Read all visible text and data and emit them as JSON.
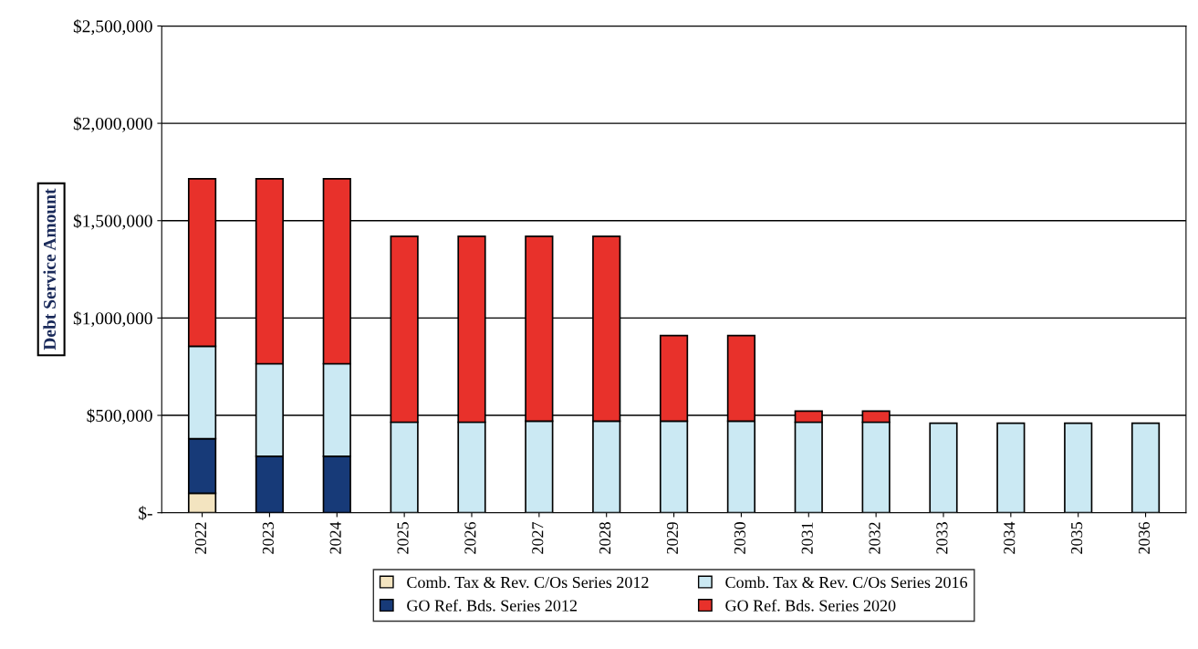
{
  "chart_data": {
    "type": "bar",
    "stacked": true,
    "ylabel": "Debt Service Amount",
    "categories": [
      "2022",
      "2023",
      "2024",
      "2025",
      "2026",
      "2027",
      "2028",
      "2029",
      "2030",
      "2031",
      "2032",
      "2033",
      "2034",
      "2035",
      "2036"
    ],
    "series": [
      {
        "name": "Comb. Tax & Rev. C/Os Series 2012",
        "color": "#f3e4c0",
        "values": [
          100000,
          0,
          0,
          0,
          0,
          0,
          0,
          0,
          0,
          0,
          0,
          0,
          0,
          0,
          0
        ]
      },
      {
        "name": "GO Ref. Bds. Series 2012",
        "color": "#173a78",
        "values": [
          280000,
          290000,
          290000,
          0,
          0,
          0,
          0,
          0,
          0,
          0,
          0,
          0,
          0,
          0,
          0
        ]
      },
      {
        "name": "Comb. Tax & Rev. C/Os Series 2016",
        "color": "#cbe9f3",
        "values": [
          475000,
          475000,
          475000,
          465000,
          465000,
          470000,
          470000,
          470000,
          470000,
          465000,
          465000,
          460000,
          460000,
          460000,
          460000
        ]
      },
      {
        "name": "GO Ref. Bds. Series 2020",
        "color": "#e8312b",
        "values": [
          860000,
          950000,
          950000,
          955000,
          955000,
          950000,
          950000,
          440000,
          440000,
          57000,
          57000,
          0,
          0,
          0,
          0
        ]
      }
    ],
    "ylim": [
      0,
      2500000
    ],
    "yticks": [
      {
        "value": 0,
        "label": "$-"
      },
      {
        "value": 500000,
        "label": "$500,000"
      },
      {
        "value": 1000000,
        "label": "$1,000,000"
      },
      {
        "value": 1500000,
        "label": "$1,500,000"
      },
      {
        "value": 2000000,
        "label": "$2,000,000"
      },
      {
        "value": 2500000,
        "label": "$2,500,000"
      }
    ],
    "grid": "y",
    "legend": "bottom"
  }
}
